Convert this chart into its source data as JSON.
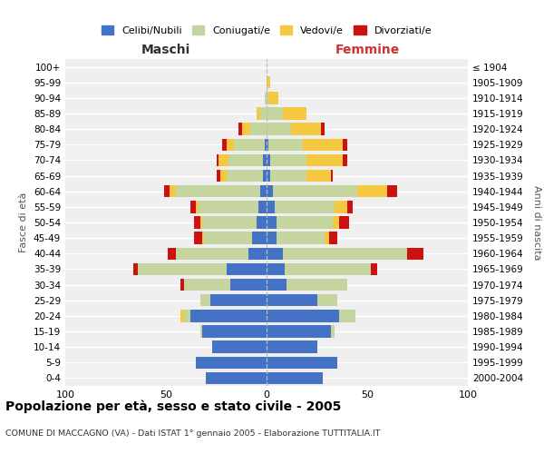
{
  "age_groups_bottom_to_top": [
    "0-4",
    "5-9",
    "10-14",
    "15-19",
    "20-24",
    "25-29",
    "30-34",
    "35-39",
    "40-44",
    "45-49",
    "50-54",
    "55-59",
    "60-64",
    "65-69",
    "70-74",
    "75-79",
    "80-84",
    "85-89",
    "90-94",
    "95-99",
    "100+"
  ],
  "birth_years_bottom_to_top": [
    "2000-2004",
    "1995-1999",
    "1990-1994",
    "1985-1989",
    "1980-1984",
    "1975-1979",
    "1970-1974",
    "1965-1969",
    "1960-1964",
    "1955-1959",
    "1950-1954",
    "1945-1949",
    "1940-1944",
    "1935-1939",
    "1930-1934",
    "1925-1929",
    "1920-1924",
    "1915-1919",
    "1910-1914",
    "1905-1909",
    "≤ 1904"
  ],
  "maschi_celibi": [
    30,
    35,
    27,
    32,
    38,
    28,
    18,
    20,
    9,
    7,
    5,
    4,
    3,
    2,
    2,
    1,
    0,
    0,
    0,
    0,
    0
  ],
  "maschi_coniugati": [
    0,
    0,
    0,
    1,
    3,
    5,
    23,
    44,
    36,
    24,
    27,
    30,
    42,
    18,
    17,
    15,
    8,
    3,
    1,
    0,
    0
  ],
  "maschi_vedovi": [
    0,
    0,
    0,
    0,
    2,
    0,
    0,
    0,
    0,
    1,
    1,
    1,
    3,
    3,
    5,
    4,
    4,
    2,
    0,
    0,
    0
  ],
  "maschi_divorziati": [
    0,
    0,
    0,
    0,
    0,
    0,
    2,
    2,
    4,
    4,
    3,
    3,
    3,
    2,
    1,
    2,
    2,
    0,
    0,
    0,
    0
  ],
  "femmine_nubili": [
    28,
    35,
    25,
    32,
    36,
    25,
    10,
    9,
    8,
    5,
    5,
    4,
    3,
    2,
    2,
    1,
    0,
    0,
    0,
    0,
    0
  ],
  "femmine_coniugate": [
    0,
    0,
    0,
    2,
    8,
    10,
    30,
    43,
    62,
    24,
    28,
    30,
    42,
    18,
    18,
    17,
    12,
    8,
    1,
    0,
    0
  ],
  "femmine_vedove": [
    0,
    0,
    0,
    0,
    0,
    0,
    0,
    0,
    0,
    2,
    3,
    6,
    15,
    12,
    18,
    20,
    15,
    12,
    5,
    2,
    0
  ],
  "femmine_divorziate": [
    0,
    0,
    0,
    0,
    0,
    0,
    0,
    3,
    8,
    4,
    5,
    3,
    5,
    1,
    2,
    2,
    2,
    0,
    0,
    0,
    0
  ],
  "color_celibi": "#4472C4",
  "color_coniugati": "#C5D5A0",
  "color_vedovi": "#F5C842",
  "color_divorziati": "#CC1111",
  "title": "Popolazione per età, sesso e stato civile - 2005",
  "subtitle": "COMUNE DI MACCAGNO (VA) - Dati ISTAT 1° gennaio 2005 - Elaborazione TUTTITALIA.IT",
  "legend_labels": [
    "Celibi/Nubili",
    "Coniugati/e",
    "Vedovi/e",
    "Divorziati/e"
  ],
  "label_maschi": "Maschi",
  "label_femmine": "Femmine",
  "label_fasce": "Fasce di età",
  "label_anni": "Anni di nascita",
  "xlim": 100,
  "bg_color": "#efefef"
}
